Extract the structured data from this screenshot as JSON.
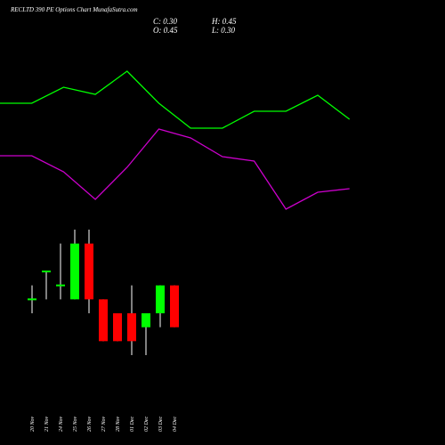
{
  "title": "RECLTD 390 PE Options Chart MunafaSutra.com",
  "header": {
    "close": "C: 0.30",
    "high": "H: 0.45",
    "open": "O: 0.45",
    "low": "L: 0.30"
  },
  "chart_data": [
    {
      "type": "line",
      "ylim": [
        0,
        250
      ],
      "series": [
        {
          "color": "#00ff00",
          "values": [
            134,
            134,
            152,
            144,
            170,
            134,
            106,
            106,
            125,
            125,
            143,
            116
          ]
        },
        {
          "color": "#cc00cc",
          "values": [
            75,
            75,
            57,
            26,
            62,
            105,
            95,
            74,
            69,
            15,
            34,
            38
          ]
        }
      ]
    },
    {
      "type": "candlestick",
      "ylim": [
        0.2,
        0.65
      ],
      "up_color": "#00ff00",
      "down_color": "#ff0000",
      "categories": [
        "20 Nov",
        "21 Nov",
        "24 Nov",
        "25 Nov",
        "26 Nov",
        "27 Nov",
        "28 Nov",
        "01 Dec",
        "02 Dec",
        "03 Dec",
        "04 Dec"
      ],
      "open": [
        0.4,
        0.5,
        0.45,
        0.4,
        0.6,
        0.4,
        0.35,
        0.35,
        0.3,
        0.35,
        0.45
      ],
      "high": [
        0.45,
        0.5,
        0.6,
        0.65,
        0.65,
        0.4,
        0.35,
        0.45,
        0.35,
        0.45,
        0.45
      ],
      "low": [
        0.35,
        0.4,
        0.4,
        0.4,
        0.35,
        0.25,
        0.25,
        0.2,
        0.2,
        0.3,
        0.3
      ],
      "close": [
        0.4,
        0.5,
        0.45,
        0.6,
        0.4,
        0.25,
        0.25,
        0.25,
        0.35,
        0.45,
        0.3
      ]
    }
  ]
}
